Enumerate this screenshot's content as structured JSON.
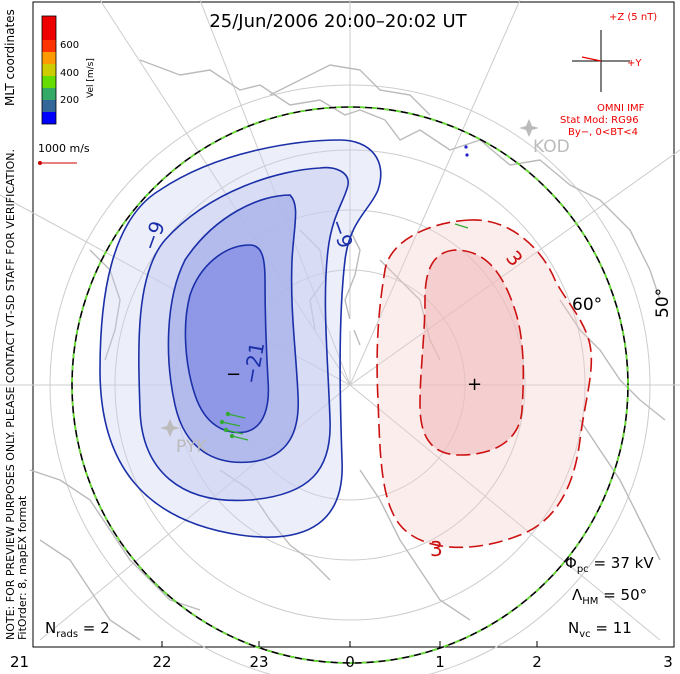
{
  "title": "25/Jun/2006 20:00–20:02 UT",
  "coordinates": "MLT coordinates",
  "velocity_scale": {
    "label": "Vel [m/s]",
    "ticks": [
      "600",
      "400",
      "200"
    ],
    "colors": [
      "#0000ff",
      "#336699",
      "#33cc33",
      "#66dd00",
      "#cccc00",
      "#ff9900",
      "#ff3300",
      "#ee0000"
    ]
  },
  "vector_scale": {
    "label": "1000 m/s",
    "color": "#cc0000"
  },
  "imf": {
    "z_label": "+Z (5 nT)",
    "y_label": "+Y",
    "source": "OMNI IMF",
    "stat_model": "Stat Mod: RG96",
    "bin": "By−, 0<BT<4",
    "color": "#ee0000"
  },
  "stations": [
    {
      "code": "KOD",
      "color": "#bbbbbb"
    },
    {
      "code": "PYK",
      "color": "#bbbbbb"
    }
  ],
  "latitude_labels": [
    "60°",
    "50°"
  ],
  "contours": {
    "negative": [
      "−9",
      "−9",
      "−21"
    ],
    "positive": [
      "3",
      "3"
    ],
    "negative_color": "#1a2fa8",
    "positive_color": "#cc1111",
    "negative_fill": "#c8cdf0",
    "positive_fill": "#f6cccc"
  },
  "extrema": {
    "min_marker": "−",
    "max_marker": "+"
  },
  "preview_note": "NOTE: FOR PREVIEW PURPOSES ONLY. PLEASE CONTACT VT-SD STAFF FOR VERIFICATION.",
  "fit_info": "FitOrder: 8, mapEX format",
  "stats": {
    "phi_label": "Φ",
    "phi_sub": "pc",
    "phi_value": " = 37 kV",
    "lambda_label": "Λ",
    "lambda_sub": "HM",
    "lambda_value": " = 50°",
    "nvc_label": "N",
    "nvc_sub": "vc",
    "nvc_value": " = 11",
    "nrads_label": "N",
    "nrads_sub": "rads",
    "nrads_value": " = 2"
  },
  "mlt_ticks": [
    "21",
    "22",
    "23",
    "0",
    "1",
    "2",
    "3"
  ]
}
